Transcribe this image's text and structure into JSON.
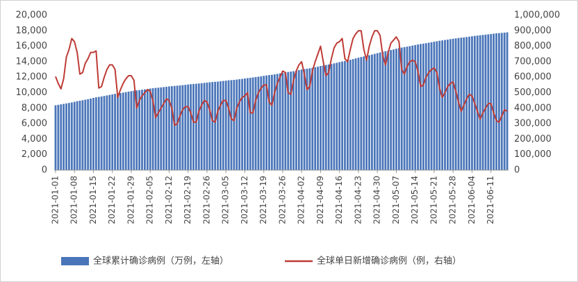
{
  "chart_data": {
    "type": "bar-line",
    "categories": [
      "2021-01-01",
      null,
      null,
      null,
      null,
      null,
      null,
      "2021-01-08",
      null,
      null,
      null,
      null,
      null,
      null,
      "2021-01-15",
      null,
      null,
      null,
      null,
      null,
      null,
      "2021-01-22",
      null,
      null,
      null,
      null,
      null,
      null,
      "2021-01-29",
      null,
      null,
      null,
      null,
      null,
      null,
      "2021-02-05",
      null,
      null,
      null,
      null,
      null,
      null,
      "2021-02-12",
      null,
      null,
      null,
      null,
      null,
      null,
      "2021-02-19",
      null,
      null,
      null,
      null,
      null,
      null,
      "2021-02-26",
      null,
      null,
      null,
      null,
      null,
      null,
      "2021-03-05",
      null,
      null,
      null,
      null,
      null,
      null,
      "2021-03-12",
      null,
      null,
      null,
      null,
      null,
      null,
      "2021-03-19",
      null,
      null,
      null,
      null,
      null,
      null,
      "2021-03-26",
      null,
      null,
      null,
      null,
      null,
      null,
      "2021-04-02",
      null,
      null,
      null,
      null,
      null,
      null,
      "2021-04-09",
      null,
      null,
      null,
      null,
      null,
      null,
      "2021-04-16",
      null,
      null,
      null,
      null,
      null,
      null,
      "2021-04-23",
      null,
      null,
      null,
      null,
      null,
      null,
      "2021-04-30",
      null,
      null,
      null,
      null,
      null,
      null,
      "2021-05-07",
      null,
      null,
      null,
      null,
      null,
      null,
      "2021-05-14",
      null,
      null,
      null,
      null,
      null,
      null,
      "2021-05-21",
      null,
      null,
      null,
      null,
      null,
      null,
      "2021-05-28",
      null,
      null,
      null,
      null,
      null,
      null,
      "2021-06-04",
      null,
      null,
      null,
      null,
      null,
      null,
      "2021-06-11",
      null,
      null,
      null,
      null,
      null,
      null
    ],
    "series": [
      {
        "name": "全球累计确诊病例（万例，左轴）",
        "type": "bar",
        "color": "#4a75b9",
        "values": [
          8380,
          8440,
          8500,
          8560,
          8620,
          8680,
          8750,
          8830,
          8910,
          8970,
          9030,
          9100,
          9170,
          9250,
          9330,
          9410,
          9460,
          9520,
          9580,
          9650,
          9720,
          9790,
          9860,
          9910,
          9960,
          10020,
          10080,
          10140,
          10200,
          10260,
          10300,
          10340,
          10390,
          10440,
          10490,
          10540,
          10580,
          10620,
          10650,
          10690,
          10730,
          10770,
          10810,
          10850,
          10880,
          10910,
          10940,
          10980,
          11020,
          11060,
          11100,
          11130,
          11160,
          11190,
          11230,
          11270,
          11310,
          11350,
          11380,
          11410,
          11440,
          11480,
          11520,
          11560,
          11600,
          11630,
          11660,
          11700,
          11740,
          11790,
          11840,
          11890,
          11930,
          11970,
          12020,
          12070,
          12120,
          12180,
          12230,
          12280,
          12320,
          12370,
          12430,
          12490,
          12550,
          12620,
          12680,
          12730,
          12780,
          12850,
          12920,
          12990,
          13050,
          13100,
          13150,
          13220,
          13290,
          13370,
          13450,
          13520,
          13580,
          13640,
          13710,
          13790,
          13870,
          13950,
          14030,
          14100,
          14170,
          14250,
          14340,
          14430,
          14520,
          14610,
          14690,
          14760,
          14840,
          14930,
          15020,
          15110,
          15200,
          15290,
          15360,
          15430,
          15510,
          15590,
          15680,
          15760,
          15830,
          15890,
          15950,
          16020,
          16090,
          16160,
          16230,
          16290,
          16340,
          16400,
          16460,
          16520,
          16590,
          16650,
          16710,
          16760,
          16810,
          16860,
          16920,
          16970,
          17020,
          17070,
          17110,
          17150,
          17190,
          17240,
          17290,
          17340,
          17380,
          17420,
          17460,
          17500,
          17540,
          17580,
          17630,
          17670,
          17700,
          17730,
          17760,
          17800
        ]
      },
      {
        "name": "全球单日新增确诊病例（例，右轴）",
        "type": "line",
        "axis": "y2",
        "color": "#be3a35",
        "values": [
          605000,
          560000,
          525000,
          590000,
          730000,
          780000,
          850000,
          830000,
          760000,
          620000,
          630000,
          690000,
          720000,
          760000,
          760000,
          770000,
          530000,
          540000,
          600000,
          650000,
          680000,
          680000,
          650000,
          470000,
          520000,
          560000,
          590000,
          610000,
          610000,
          580000,
          400000,
          450000,
          480000,
          500000,
          520000,
          510000,
          450000,
          340000,
          370000,
          400000,
          430000,
          460000,
          450000,
          400000,
          290000,
          300000,
          350000,
          390000,
          410000,
          410000,
          370000,
          310000,
          310000,
          380000,
          420000,
          450000,
          440000,
          390000,
          320000,
          310000,
          380000,
          420000,
          450000,
          450000,
          400000,
          330000,
          320000,
          400000,
          440000,
          470000,
          480000,
          500000,
          370000,
          370000,
          450000,
          500000,
          530000,
          550000,
          550000,
          440000,
          420000,
          500000,
          560000,
          600000,
          640000,
          630000,
          500000,
          490000,
          580000,
          640000,
          680000,
          700000,
          620000,
          520000,
          540000,
          640000,
          700000,
          750000,
          800000,
          700000,
          610000,
          630000,
          720000,
          790000,
          820000,
          830000,
          850000,
          720000,
          700000,
          780000,
          850000,
          880000,
          900000,
          900000,
          780000,
          710000,
          800000,
          860000,
          900000,
          900000,
          870000,
          740000,
          680000,
          760000,
          820000,
          840000,
          860000,
          830000,
          650000,
          620000,
          670000,
          700000,
          710000,
          700000,
          640000,
          540000,
          550000,
          600000,
          630000,
          650000,
          660000,
          630000,
          530000,
          470000,
          500000,
          540000,
          560000,
          570000,
          510000,
          440000,
          380000,
          420000,
          460000,
          490000,
          480000,
          430000,
          380000,
          330000,
          370000,
          400000,
          430000,
          430000,
          370000,
          320000,
          310000,
          350000,
          390000,
          380000
        ]
      }
    ],
    "ylim": [
      0,
      20000
    ],
    "yticks": [
      0,
      {
        "value": 2000,
        "label": "2,000"
      },
      {
        "value": 4000,
        "label": "4,000"
      },
      {
        "value": 6000,
        "label": "6,000"
      },
      {
        "value": 8000,
        "label": "8,000"
      },
      {
        "value": 10000,
        "label": "10,000"
      },
      {
        "value": 12000,
        "label": "12,000"
      },
      {
        "value": 14000,
        "label": "14,000"
      },
      {
        "value": 16000,
        "label": "16,000"
      },
      {
        "value": 18000,
        "label": "18,000"
      },
      {
        "value": 20000,
        "label": "20,000"
      }
    ],
    "y2lim": [
      0,
      1000000
    ],
    "y2ticks": [
      0,
      {
        "value": 100000,
        "label": "100,000"
      },
      {
        "value": 200000,
        "label": "200,000"
      },
      {
        "value": 300000,
        "label": "300,000"
      },
      {
        "value": 400000,
        "label": "400,000"
      },
      {
        "value": 500000,
        "label": "500,000"
      },
      {
        "value": 600000,
        "label": "600,000"
      },
      {
        "value": 700000,
        "label": "700,000"
      },
      {
        "value": 800000,
        "label": "800,000"
      },
      {
        "value": 900000,
        "label": "900,000"
      },
      {
        "value": 1000000,
        "label": "1,000,000"
      }
    ],
    "grid": false,
    "legend": "bottom"
  }
}
